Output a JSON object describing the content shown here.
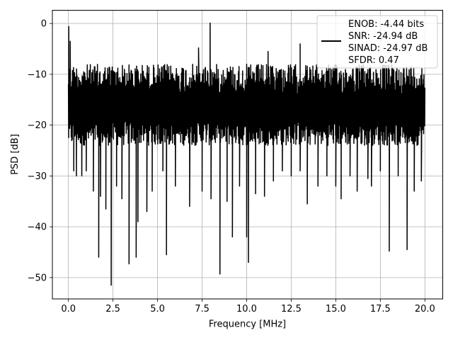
{
  "chart_data": {
    "type": "line",
    "xlabel": "Frequency [MHz]",
    "ylabel": "PSD [dB]",
    "xlim": [
      -0.9,
      21.0
    ],
    "ylim": [
      -54.2,
      2.6
    ],
    "xticks": [
      0.0,
      2.5,
      5.0,
      7.5,
      10.0,
      12.5,
      15.0,
      17.5,
      20.0
    ],
    "xtick_labels": [
      "0.0",
      "2.5",
      "5.0",
      "7.5",
      "10.0",
      "12.5",
      "15.0",
      "17.5",
      "20.0"
    ],
    "yticks": [
      0,
      -10,
      -20,
      -30,
      -40,
      -50
    ],
    "ytick_labels": [
      "0",
      "−10",
      "−20",
      "−30",
      "−40",
      "−50"
    ],
    "grid": true,
    "line_color": "#000000",
    "legend": {
      "placement": "top-right",
      "entries": [
        "ENOB: -4.44 bits",
        "SNR: -24.94 dB",
        "SINAD: -24.97 dB",
        "SFDR: 0.47"
      ]
    },
    "series": [
      {
        "x_range": [
          0.0,
          20.0
        ],
        "baseline_range": [
          -22.0,
          -8.0
        ],
        "peaks": [
          {
            "x": 0.02,
            "y": -0.6
          },
          {
            "x": 0.1,
            "y": -3.5
          },
          {
            "x": 7.95,
            "y": 0.1
          },
          {
            "x": 7.3,
            "y": -4.8
          },
          {
            "x": 11.2,
            "y": -5.5
          },
          {
            "x": 13.0,
            "y": -4.0
          }
        ],
        "dips": [
          {
            "x": 0.3,
            "y": -29.0
          },
          {
            "x": 0.45,
            "y": -30.0
          },
          {
            "x": 0.75,
            "y": -30.0
          },
          {
            "x": 1.0,
            "y": -29.0
          },
          {
            "x": 1.4,
            "y": -33.0
          },
          {
            "x": 1.7,
            "y": -46.0
          },
          {
            "x": 1.8,
            "y": -34.0
          },
          {
            "x": 2.1,
            "y": -36.5
          },
          {
            "x": 2.4,
            "y": -51.5
          },
          {
            "x": 2.7,
            "y": -32.0
          },
          {
            "x": 3.0,
            "y": -34.5
          },
          {
            "x": 3.4,
            "y": -47.3
          },
          {
            "x": 3.8,
            "y": -46.0
          },
          {
            "x": 3.9,
            "y": -39.0
          },
          {
            "x": 4.4,
            "y": -37.0
          },
          {
            "x": 4.7,
            "y": -33.0
          },
          {
            "x": 5.5,
            "y": -45.5
          },
          {
            "x": 5.3,
            "y": -29.0
          },
          {
            "x": 6.0,
            "y": -32.0
          },
          {
            "x": 6.8,
            "y": -36.0
          },
          {
            "x": 7.5,
            "y": -33.0
          },
          {
            "x": 8.0,
            "y": -34.5
          },
          {
            "x": 8.5,
            "y": -49.3
          },
          {
            "x": 8.9,
            "y": -35.0
          },
          {
            "x": 9.2,
            "y": -42.0
          },
          {
            "x": 9.6,
            "y": -32.0
          },
          {
            "x": 10.0,
            "y": -42.0
          },
          {
            "x": 10.1,
            "y": -47.0
          },
          {
            "x": 10.5,
            "y": -33.5
          },
          {
            "x": 11.0,
            "y": -34.0
          },
          {
            "x": 11.5,
            "y": -31.0
          },
          {
            "x": 12.0,
            "y": -29.0
          },
          {
            "x": 12.5,
            "y": -30.0
          },
          {
            "x": 13.0,
            "y": -29.0
          },
          {
            "x": 13.4,
            "y": -35.5
          },
          {
            "x": 14.0,
            "y": -32.0
          },
          {
            "x": 14.5,
            "y": -30.0
          },
          {
            "x": 15.0,
            "y": -32.0
          },
          {
            "x": 15.3,
            "y": -34.5
          },
          {
            "x": 15.8,
            "y": -30.0
          },
          {
            "x": 16.2,
            "y": -33.0
          },
          {
            "x": 16.8,
            "y": -30.5
          },
          {
            "x": 17.0,
            "y": -32.0
          },
          {
            "x": 17.5,
            "y": -29.0
          },
          {
            "x": 18.0,
            "y": -44.8
          },
          {
            "x": 18.5,
            "y": -30.0
          },
          {
            "x": 19.0,
            "y": -44.5
          },
          {
            "x": 19.4,
            "y": -33.0
          },
          {
            "x": 19.8,
            "y": -31.0
          }
        ]
      }
    ]
  }
}
